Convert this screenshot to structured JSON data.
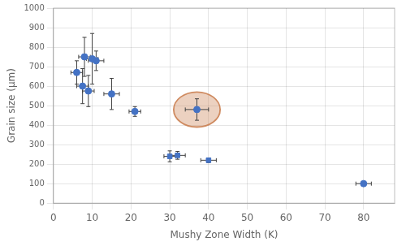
{
  "chart_data": {
    "type": "scatter",
    "xlabel": "Mushy Zone Width (K)",
    "ylabel": "Grain size (μm)",
    "xlim": [
      0,
      88
    ],
    "ylim": [
      0,
      1000
    ],
    "xticks": [
      0,
      10,
      20,
      30,
      40,
      50,
      60,
      70,
      80
    ],
    "yticks": [
      0,
      100,
      200,
      300,
      400,
      500,
      600,
      700,
      800,
      900,
      1000
    ],
    "grid": true,
    "color": "#4472C4",
    "error_color": "#404040",
    "points": [
      {
        "x": 6,
        "y": 670,
        "xerr": 1.5,
        "yerr": 60,
        "marker": "o"
      },
      {
        "x": 7.5,
        "y": 600,
        "xerr": 1.5,
        "yerr": 90,
        "marker": "o"
      },
      {
        "x": 8,
        "y": 750,
        "xerr": 1.5,
        "yerr": 100,
        "marker": "o"
      },
      {
        "x": 9,
        "y": 575,
        "xerr": 1.5,
        "yerr": 80,
        "marker": "o"
      },
      {
        "x": 10,
        "y": 740,
        "xerr": 1.5,
        "yerr": 130,
        "marker": "o"
      },
      {
        "x": 11,
        "y": 730,
        "xerr": 2,
        "yerr": 50,
        "marker": "o"
      },
      {
        "x": 15,
        "y": 560,
        "xerr": 2,
        "yerr": 80,
        "marker": "o"
      },
      {
        "x": 21,
        "y": 470,
        "xerr": 1.5,
        "yerr": 25,
        "marker": "o"
      },
      {
        "x": 37,
        "y": 480,
        "xerr": 3,
        "yerr": 55,
        "marker": "o"
      },
      {
        "x": 30,
        "y": 240,
        "xerr": 1.5,
        "yerr": 28,
        "marker": "s"
      },
      {
        "x": 32,
        "y": 245,
        "xerr": 2,
        "yerr": 20,
        "marker": "s"
      },
      {
        "x": 40,
        "y": 220,
        "xerr": 2,
        "yerr": 12,
        "marker": "s"
      },
      {
        "x": 80,
        "y": 100,
        "xerr": 2,
        "yerr": 8,
        "marker": "o"
      }
    ],
    "highlight": {
      "x": 37,
      "y": 480,
      "rx": 6,
      "ry": 90,
      "color": "#C97B4B"
    }
  }
}
